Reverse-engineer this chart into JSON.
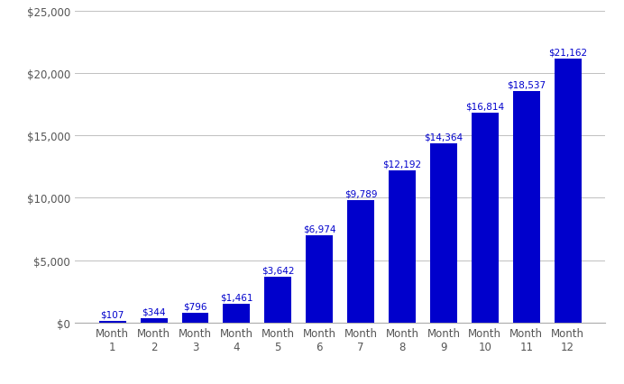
{
  "categories": [
    "Month\n1",
    "Month\n2",
    "Month\n3",
    "Month\n4",
    "Month\n5",
    "Month\n6",
    "Month\n7",
    "Month\n8",
    "Month\n9",
    "Month\n10",
    "Month\n11",
    "Month\n12"
  ],
  "values": [
    107,
    344,
    796,
    1461,
    3642,
    6974,
    9789,
    12192,
    14364,
    16814,
    18537,
    21162
  ],
  "labels": [
    "$107",
    "$344",
    "$796",
    "$1,461",
    "$3,642",
    "$6,974",
    "$9,789",
    "$12,192",
    "$14,364",
    "$16,814",
    "$18,537",
    "$21,162"
  ],
  "bar_color": "#0000CC",
  "label_color": "#0000CC",
  "background_color": "#ffffff",
  "ylim": [
    0,
    25000
  ],
  "yticks": [
    0,
    5000,
    10000,
    15000,
    20000,
    25000
  ],
  "ytick_labels": [
    "$0",
    "$5,000",
    "$10,000",
    "$15,000",
    "$20,000",
    "$25,000"
  ],
  "grid_color": "#c0c0c0",
  "label_fontsize": 7.5,
  "tick_fontsize": 8.5,
  "bar_width": 0.65
}
